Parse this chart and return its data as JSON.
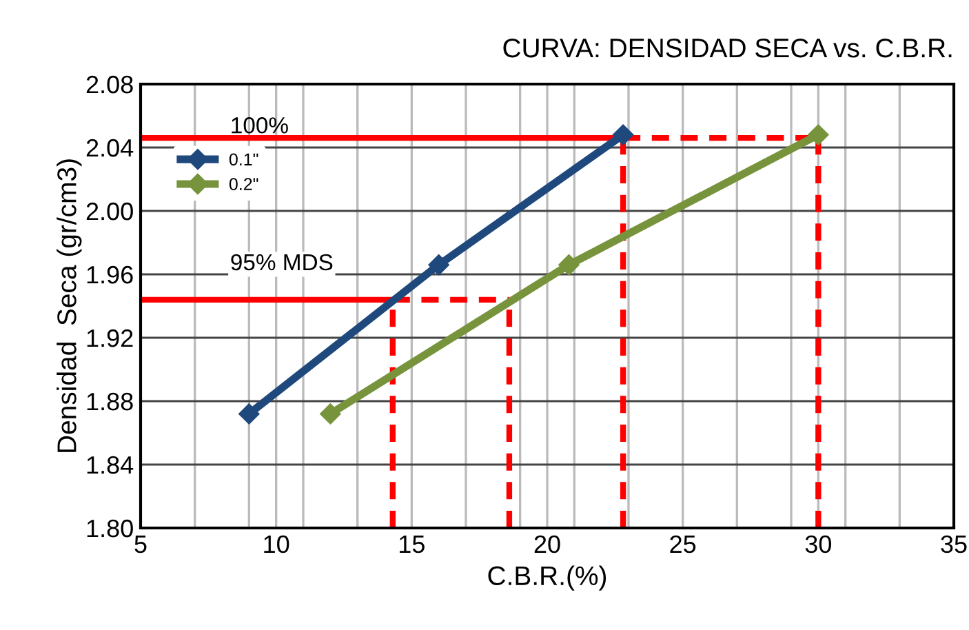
{
  "chart_data": {
    "type": "line",
    "title": "CURVA: DENSIDAD SECA vs. C.B.R.",
    "xlabel": "C.B.R.(%)",
    "ylabel": "Densidad  Seca (gr/cm3)",
    "xlim": [
      5,
      35
    ],
    "ylim": [
      1.8,
      2.08
    ],
    "xticks": [
      5,
      {
        "value": 7,
        "label": null
      },
      {
        "value": 9,
        "label": null
      },
      10,
      {
        "value": 11,
        "label": null
      },
      {
        "value": 13,
        "label": null
      },
      15,
      {
        "value": 17,
        "label": null
      },
      {
        "value": 19,
        "label": null
      },
      20,
      {
        "value": 21,
        "label": null
      },
      {
        "value": 23,
        "label": null
      },
      25,
      {
        "value": 27,
        "label": null
      },
      {
        "value": 29,
        "label": null
      },
      30,
      {
        "value": 31,
        "label": null
      },
      {
        "value": 33,
        "label": null
      },
      35
    ],
    "yticks": [
      {
        "value": 1.8,
        "label": "1.80"
      },
      1.84,
      1.88,
      1.92,
      1.96,
      {
        "value": 2.0,
        "label": "2.00"
      },
      2.04,
      2.08
    ],
    "grid": true,
    "legend": "top left",
    "marker": "diamond",
    "series": [
      {
        "name": "0.1\"",
        "color": "#1f497d",
        "x": [
          9.0,
          16.0,
          22.8
        ],
        "values": [
          1.872,
          1.966,
          2.048
        ]
      },
      {
        "name": "0.2\"",
        "color": "#77933c",
        "x": [
          12.0,
          20.8,
          30.0
        ],
        "values": [
          1.872,
          1.966,
          2.048
        ]
      },
      {
        "color": "#ff0000",
        "marker": "none",
        "line_style": "solid",
        "x": [
          5,
          22.8
        ],
        "values": [
          2.046,
          2.046
        ]
      },
      {
        "color": "#ff0000",
        "marker": "none",
        "line_style": "dashed",
        "x": [
          22.8,
          30.0
        ],
        "values": [
          2.046,
          2.046
        ]
      },
      {
        "color": "#ff0000",
        "marker": "none",
        "line_style": "solid",
        "x": [
          5,
          14.3
        ],
        "values": [
          1.944,
          1.944
        ]
      },
      {
        "color": "#ff0000",
        "marker": "none",
        "line_style": "dashed",
        "x": [
          14.3,
          18.6
        ],
        "values": [
          1.944,
          1.944
        ]
      },
      {
        "color": "#ff0000",
        "marker": "none",
        "line_style": "dashed",
        "x": [
          14.3,
          14.3
        ],
        "values": [
          1.8,
          1.944
        ]
      },
      {
        "color": "#ff0000",
        "marker": "none",
        "line_style": "dashed",
        "x": [
          18.6,
          18.6
        ],
        "values": [
          1.8,
          1.944
        ]
      },
      {
        "color": "#ff0000",
        "marker": "none",
        "line_style": "dashed",
        "x": [
          22.8,
          22.8
        ],
        "values": [
          1.8,
          2.046
        ]
      },
      {
        "color": "#ff0000",
        "marker": "none",
        "line_style": "dashed",
        "x": [
          30.0,
          30.0
        ],
        "values": [
          1.8,
          2.046
        ]
      }
    ],
    "annotations": [
      {
        "text": "100%",
        "x": 8.3,
        "y": 2.046
      },
      "95% MDS"
    ]
  }
}
